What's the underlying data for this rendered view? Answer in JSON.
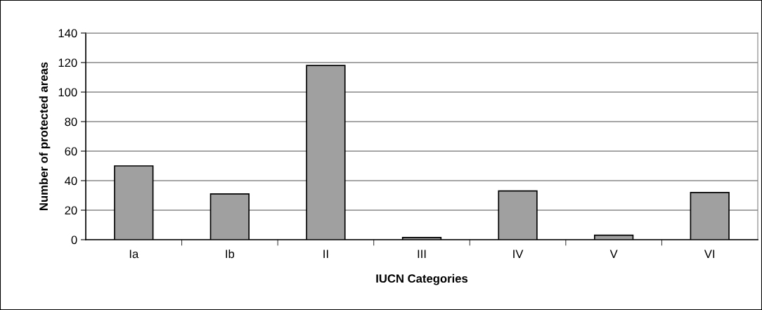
{
  "chart_data": {
    "type": "bar",
    "xlabel": "IUCN Categories",
    "ylabel": "Number of protected areas",
    "categories": [
      "Ia",
      "Ib",
      "II",
      "III",
      "IV",
      "V",
      "VI"
    ],
    "values": [
      50,
      31,
      118,
      1.5,
      33,
      3,
      32
    ],
    "color": "#a0a0a0",
    "ylim": [
      0,
      140
    ],
    "yticks": [
      0,
      20,
      40,
      60,
      80,
      100,
      120,
      140
    ],
    "grid": "y",
    "legend": false
  }
}
